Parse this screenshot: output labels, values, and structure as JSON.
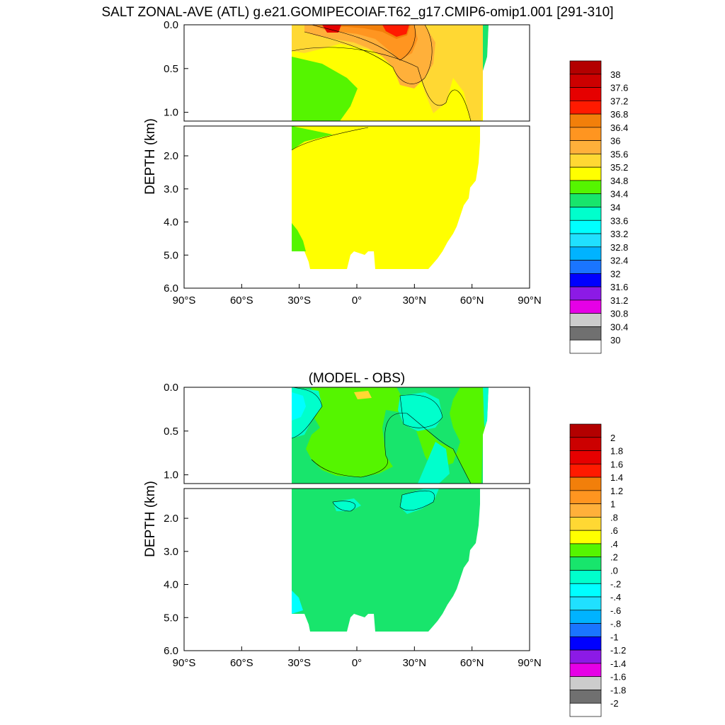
{
  "figure": {
    "title": "SALT ZONAL-AVE (ATL) g.e21.GOMIPECOIAF.T62_g17.CMIP6-omip1.001 [291-310]"
  },
  "chart_data": [
    {
      "type": "heatmap",
      "title": "",
      "ylabel": "DEPTH (km)",
      "xlabel": "",
      "xlim": [
        -90,
        90
      ],
      "ylim": [
        6.0,
        0.0
      ],
      "x_ticks": [
        "90°S",
        "60°S",
        "30°S",
        "0°",
        "30°N",
        "60°N",
        "90°N"
      ],
      "y_ticks_upper": [
        "0.0",
        "0.5",
        "1.0"
      ],
      "y_ticks_lower": [
        "2.0",
        "3.0",
        "4.0",
        "5.0",
        "6.0"
      ],
      "split_depth_km": 1.1,
      "ocean_lat_range": [
        -34,
        66
      ],
      "colorbar_labels": [
        "38",
        "37.6",
        "37.2",
        "36.8",
        "36.4",
        "36",
        "35.6",
        "35.2",
        "34.8",
        "34.4",
        "34",
        "33.6",
        "33.2",
        "32.8",
        "32.4",
        "32",
        "31.6",
        "31.2",
        "30.8",
        "30.4",
        "30"
      ],
      "colorbar_colors": [
        "#b30000",
        "#cc0000",
        "#e60000",
        "#ff1a00",
        "#f27f0a",
        "#ff9520",
        "#ffb03a",
        "#ffd833",
        "#ffff00",
        "#55f500",
        "#18e56c",
        "#00ffcc",
        "#00ffff",
        "#20e0ff",
        "#00b3ff",
        "#1a75ff",
        "#0000ff",
        "#8c1ae6",
        "#e600e6",
        "#cccccc",
        "#707070",
        "#ffffff"
      ],
      "dominant_values": {
        "upper_north_subtropics": 36.4,
        "deep_ocean": 34.9,
        "southern_intermediate": 34.4
      }
    },
    {
      "type": "heatmap",
      "title": "(MODEL - OBS)",
      "ylabel": "DEPTH (km)",
      "xlabel": "",
      "xlim": [
        -90,
        90
      ],
      "ylim": [
        6.0,
        0.0
      ],
      "x_ticks": [
        "90°S",
        "60°S",
        "30°S",
        "0°",
        "30°N",
        "60°N",
        "90°N"
      ],
      "y_ticks_upper": [
        "0.0",
        "0.5",
        "1.0"
      ],
      "y_ticks_lower": [
        "2.0",
        "3.0",
        "4.0",
        "5.0",
        "6.0"
      ],
      "split_depth_km": 1.1,
      "ocean_lat_range": [
        -34,
        66
      ],
      "colorbar_labels": [
        "2",
        "1.8",
        "1.6",
        "1.4",
        "1.2",
        "1",
        ".8",
        ".6",
        ".4",
        ".2",
        ".0",
        "-.2",
        "-.4",
        "-.6",
        "-.8",
        "-1",
        "-1.2",
        "-1.4",
        "-1.6",
        "-1.8",
        "-2"
      ],
      "colorbar_colors": [
        "#b30000",
        "#cc0000",
        "#e60000",
        "#ff1a00",
        "#f27f0a",
        "#ff9520",
        "#ffb03a",
        "#ffd833",
        "#ffff00",
        "#55f500",
        "#18e56c",
        "#00ffcc",
        "#00ffff",
        "#20e0ff",
        "#00b3ff",
        "#1a75ff",
        "#0000ff",
        "#8c1ae6",
        "#e600e6",
        "#cccccc",
        "#707070",
        "#ffffff"
      ],
      "dominant_values": {
        "deep_ocean": 0.1,
        "upper_positive": 0.3,
        "negative_pockets": -0.1
      }
    }
  ]
}
